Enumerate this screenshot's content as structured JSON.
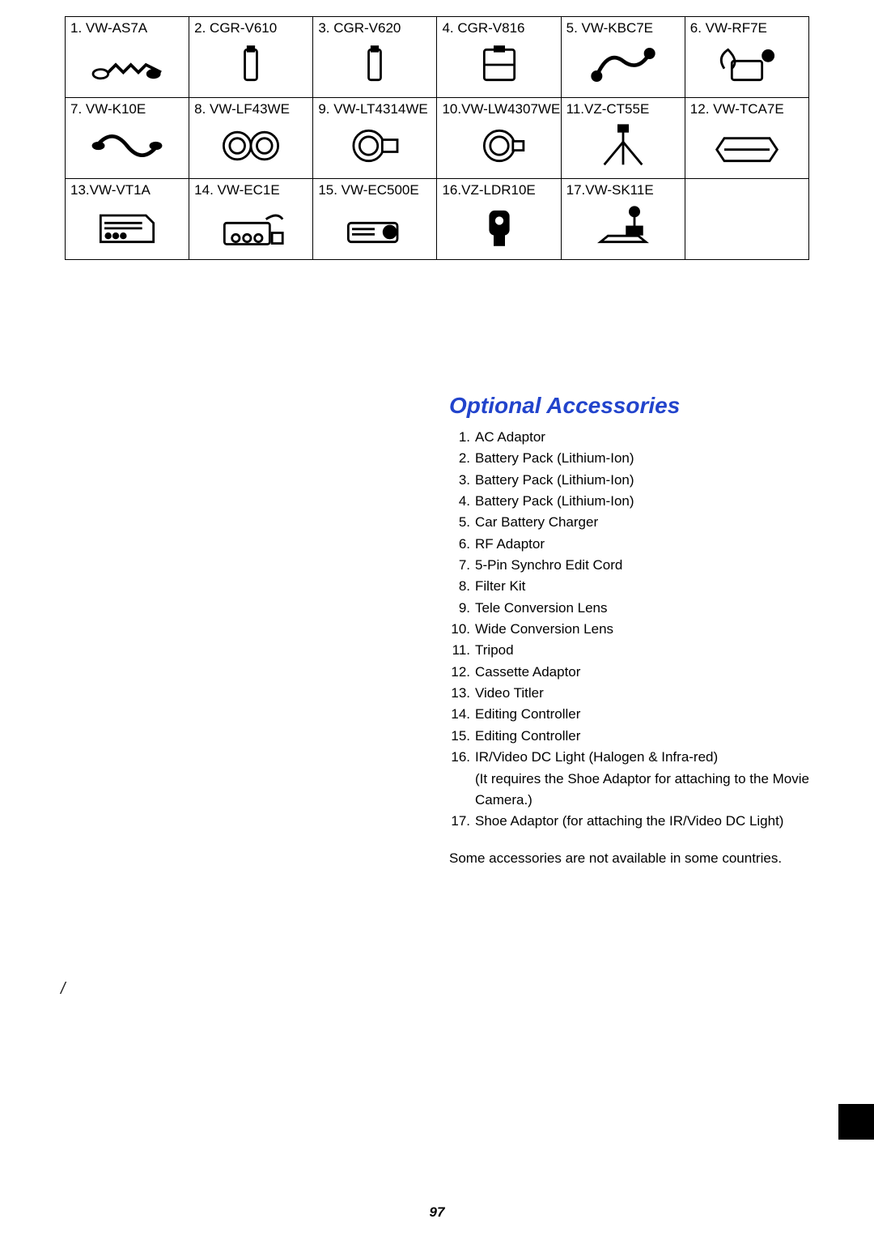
{
  "grid": {
    "rows": [
      [
        {
          "label": "1. VW-AS7A",
          "icon": "adaptor"
        },
        {
          "label": "2. CGR-V610",
          "icon": "battery"
        },
        {
          "label": "3. CGR-V620",
          "icon": "battery"
        },
        {
          "label": "4. CGR-V816",
          "icon": "battery-wide"
        },
        {
          "label": "5. VW-KBC7E",
          "icon": "car-charger"
        },
        {
          "label": "6. VW-RF7E",
          "icon": "rf-adaptor"
        }
      ],
      [
        {
          "label": "7. VW-K10E",
          "icon": "cord"
        },
        {
          "label": "8. VW-LF43WE",
          "icon": "filter"
        },
        {
          "label": "9. VW-LT4314WE",
          "icon": "tele-lens"
        },
        {
          "label": "10.VW-LW4307WE",
          "icon": "wide-lens"
        },
        {
          "label": "11.VZ-CT55E",
          "icon": "tripod"
        },
        {
          "label": "12. VW-TCA7E",
          "icon": "cassette-adaptor"
        }
      ],
      [
        {
          "label": "13.VW-VT1A",
          "icon": "titler"
        },
        {
          "label": "14. VW-EC1E",
          "icon": "editor1"
        },
        {
          "label": "15. VW-EC500E",
          "icon": "editor2"
        },
        {
          "label": "16.VZ-LDR10E",
          "icon": "dc-light"
        },
        {
          "label": "17.VW-SK11E",
          "icon": "shoe-adaptor"
        },
        {
          "label": "",
          "icon": ""
        }
      ]
    ]
  },
  "section_title": "Optional Accessories",
  "accessories": [
    {
      "n": "1.",
      "t": "AC Adaptor"
    },
    {
      "n": "2.",
      "t": "Battery Pack (Lithium-Ion)"
    },
    {
      "n": "3.",
      "t": "Battery Pack (Lithium-Ion)"
    },
    {
      "n": "4.",
      "t": "Battery Pack (Lithium-Ion)"
    },
    {
      "n": "5.",
      "t": "Car Battery Charger"
    },
    {
      "n": "6.",
      "t": "RF Adaptor"
    },
    {
      "n": "7.",
      "t": "5-Pin Synchro Edit Cord"
    },
    {
      "n": "8.",
      "t": "Filter Kit"
    },
    {
      "n": "9.",
      "t": "Tele Conversion Lens"
    },
    {
      "n": "10.",
      "t": "Wide Conversion Lens"
    },
    {
      "n": "11.",
      "t": "Tripod"
    },
    {
      "n": "12.",
      "t": "Cassette Adaptor"
    },
    {
      "n": "13.",
      "t": "Video Titler"
    },
    {
      "n": "14.",
      "t": "Editing Controller"
    },
    {
      "n": "15.",
      "t": "Editing Controller"
    },
    {
      "n": "16.",
      "t": "IR/Video DC Light (Halogen & Infra-red)\n(It requires the Shoe Adaptor for attaching to the Movie Camera.)"
    },
    {
      "n": "17.",
      "t": "Shoe Adaptor (for attaching the IR/Video DC Light)"
    }
  ],
  "footnote": "Some accessories are not available in some countries.",
  "page_number": "97",
  "colors": {
    "title": "#2244cc",
    "text": "#000000",
    "border": "#000000",
    "background": "#ffffff"
  }
}
